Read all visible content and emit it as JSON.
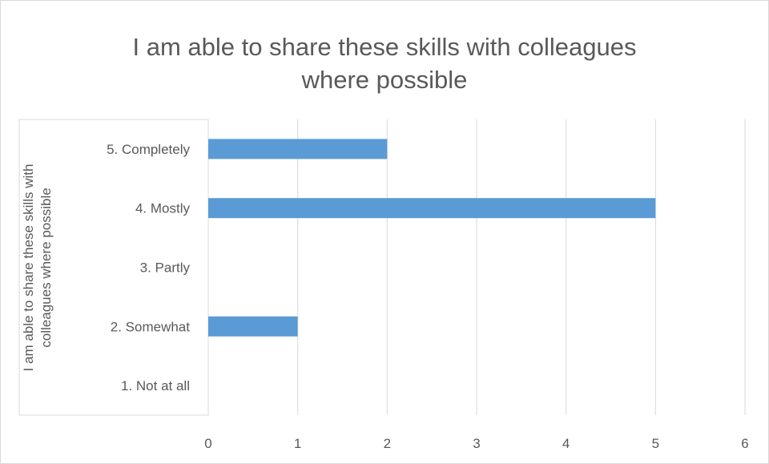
{
  "chart_data": {
    "type": "bar",
    "orientation": "horizontal",
    "title_lines": [
      "I am able to share these skills with colleagues",
      "where possible"
    ],
    "ylabel_lines": [
      "I am able to share these skills with",
      "colleagues where possible"
    ],
    "xlabel": "",
    "categories": [
      "1. Not at all",
      "2. Somewhat",
      "3. Partly",
      "4. Mostly",
      "5. Completely"
    ],
    "values": [
      0,
      1,
      0,
      5,
      2
    ],
    "xlim": [
      0,
      6
    ],
    "xticks": [
      "0",
      "1",
      "2",
      "3",
      "4",
      "5",
      "6"
    ],
    "grid": true,
    "legend": "none",
    "bar_color": "#5b9bd5",
    "grid_color": "#d9d9d9",
    "text_color": "#595959"
  }
}
